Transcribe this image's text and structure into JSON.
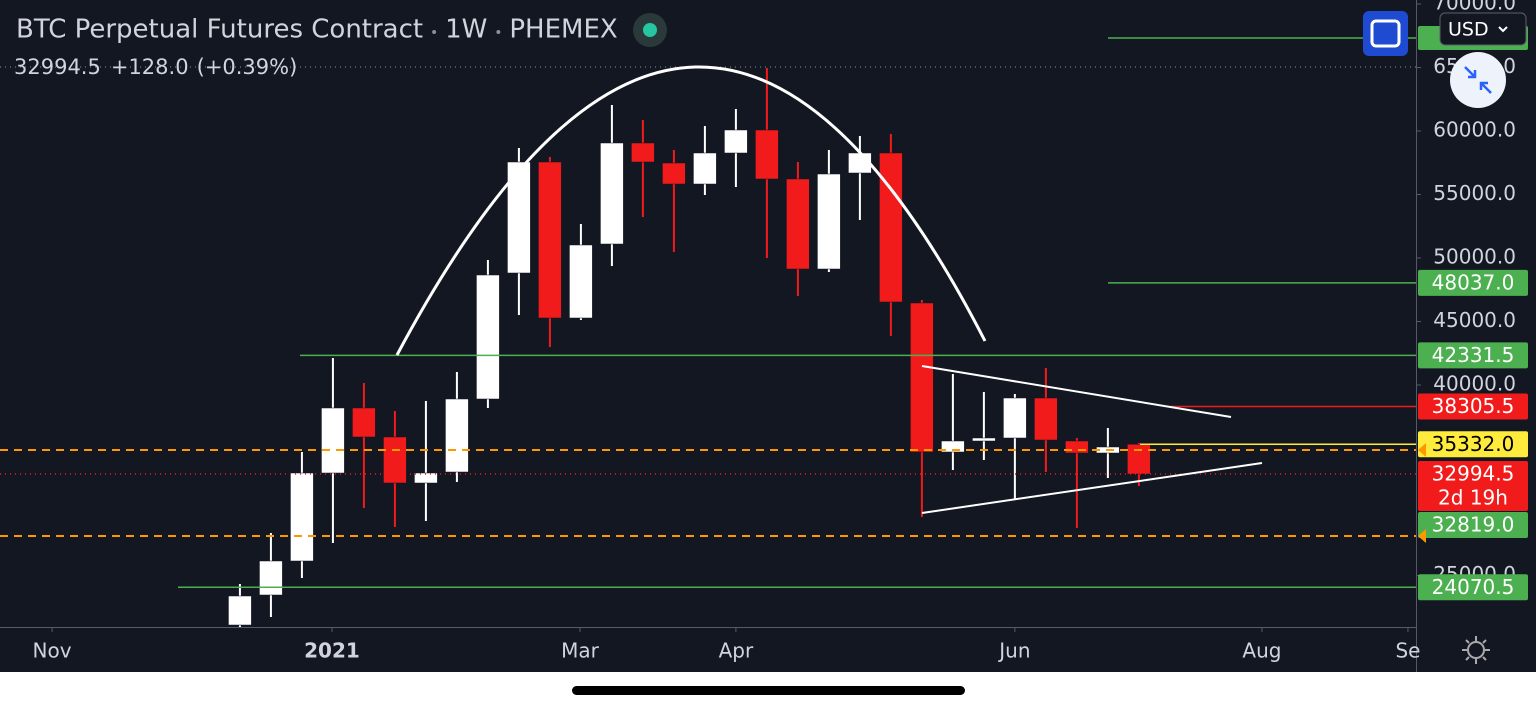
{
  "chart_data": {
    "type": "candlestick",
    "title": "BTC Perpetual Futures Contract",
    "interval": "1W",
    "exchange": "PHEMEX",
    "last_price": "32994.5",
    "change": "+128.0",
    "change_pct": "(+0.39%)",
    "currency": "USD",
    "countdown": "2d 19h",
    "x": [
      0,
      1,
      2,
      3,
      4,
      5,
      6,
      7,
      8,
      9,
      10,
      11,
      12,
      13,
      14,
      15,
      16,
      17,
      18,
      19,
      20,
      21,
      22,
      23,
      24,
      25,
      26,
      27,
      28,
      29
    ],
    "open": [
      21102,
      23465,
      26142,
      33071,
      38189,
      35906,
      32284,
      33150,
      38898,
      48819,
      57559,
      45276,
      51102,
      59055,
      57480,
      55827,
      58268,
      60079,
      56221,
      49134,
      56693,
      58268,
      46457,
      34725,
      35591,
      35827,
      38976,
      35591,
      34646,
      35332
    ],
    "high": [
      24331,
      28347,
      34725,
      42126,
      40158,
      37953,
      38740,
      41024,
      49843,
      58661,
      57953,
      52677,
      62047,
      60866,
      58504,
      60394,
      61732,
      64961,
      57559,
      58504,
      59606,
      59764,
      46693,
      40866,
      39449,
      39291,
      41339,
      35827,
      36614,
      35433
    ],
    "low": [
      20945,
      21732,
      24803,
      27559,
      30315,
      28819,
      29291,
      32362,
      38189,
      45512,
      42992,
      45118,
      49370,
      53228,
      50473,
      54961,
      55591,
      50000,
      47008,
      48898,
      52992,
      43858,
      29606,
      33307,
      34095,
      30945,
      33150,
      28740,
      32677,
      32047
    ],
    "close": [
      23386,
      26142,
      33071,
      38189,
      35906,
      32284,
      33071,
      38898,
      48661,
      57559,
      45276,
      51024,
      59055,
      57559,
      55827,
      58268,
      60079,
      56221,
      49134,
      56614,
      58268,
      46536,
      34725,
      35591,
      35827,
      38976,
      35669,
      34646,
      35118,
      32994.5
    ],
    "up_color": "#ffffff",
    "down_color": "#f21b1b",
    "xlim": [
      -7.74,
      37.94
    ],
    "xticks": [
      {
        "value": -6.06,
        "label": "Nov"
      },
      {
        "value": 2.97,
        "label": "2021"
      },
      {
        "value": 10.97,
        "label": "Mar"
      },
      {
        "value": 16.0,
        "label": "Apr"
      },
      {
        "value": 25.0,
        "label": "Jun"
      },
      {
        "value": 32.97,
        "label": "Aug"
      },
      {
        "value": 37.68,
        "label": "Se"
      }
    ],
    "ylim": [
      20945,
      70315
    ],
    "yticks": [
      {
        "value": 70000,
        "label": "70000.0"
      },
      {
        "value": 65000,
        "label": "65000.0"
      },
      {
        "value": 60000,
        "label": "60000.0"
      },
      {
        "value": 55000,
        "label": "55000.0"
      },
      {
        "value": 50000,
        "label": "50000.0"
      },
      {
        "value": 45000,
        "label": "45000.0"
      },
      {
        "value": 40000,
        "label": "40000.0"
      },
      {
        "value": 25000,
        "label": "25000.0"
      }
    ],
    "levels": [
      {
        "value": 48037,
        "label": "48037.0",
        "color": "#4caf50"
      },
      {
        "value": 42331.5,
        "label": "42331.5",
        "color": "#4caf50"
      },
      {
        "value": 38305.5,
        "label": "38305.5",
        "color": "#f21b1b"
      },
      {
        "value": 35332,
        "label": "35332.0",
        "color": "#ffeb3b"
      },
      {
        "value": 32994.5,
        "label": "32994.5",
        "color": "#f21b1b"
      },
      {
        "value": 32819,
        "label": "32819.0",
        "color": "#4caf50"
      },
      {
        "value": 24070.5,
        "label": "24070.5",
        "color": "#4caf50"
      }
    ]
  }
}
